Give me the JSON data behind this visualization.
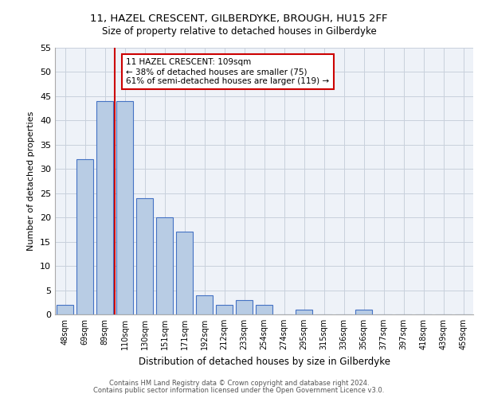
{
  "title_line1": "11, HAZEL CRESCENT, GILBERDYKE, BROUGH, HU15 2FF",
  "title_line2": "Size of property relative to detached houses in Gilberdyke",
  "xlabel": "Distribution of detached houses by size in Gilberdyke",
  "ylabel": "Number of detached properties",
  "bins": [
    "48sqm",
    "69sqm",
    "89sqm",
    "110sqm",
    "130sqm",
    "151sqm",
    "171sqm",
    "192sqm",
    "212sqm",
    "233sqm",
    "254sqm",
    "274sqm",
    "295sqm",
    "315sqm",
    "336sqm",
    "356sqm",
    "377sqm",
    "397sqm",
    "418sqm",
    "439sqm",
    "459sqm"
  ],
  "values": [
    2,
    32,
    44,
    44,
    24,
    20,
    17,
    4,
    2,
    3,
    2,
    0,
    1,
    0,
    0,
    1,
    0,
    0,
    0,
    0,
    0
  ],
  "bar_color": "#b8cce4",
  "bar_edge_color": "#4472c4",
  "grid_color": "#c8d0dc",
  "bg_color": "#eef2f8",
  "vline_color": "#cc0000",
  "annotation_text": "11 HAZEL CRESCENT: 109sqm\n← 38% of detached houses are smaller (75)\n61% of semi-detached houses are larger (119) →",
  "annotation_box_color": "#cc0000",
  "ylim": [
    0,
    55
  ],
  "yticks": [
    0,
    5,
    10,
    15,
    20,
    25,
    30,
    35,
    40,
    45,
    50,
    55
  ],
  "footer_line1": "Contains HM Land Registry data © Crown copyright and database right 2024.",
  "footer_line2": "Contains public sector information licensed under the Open Government Licence v3.0."
}
